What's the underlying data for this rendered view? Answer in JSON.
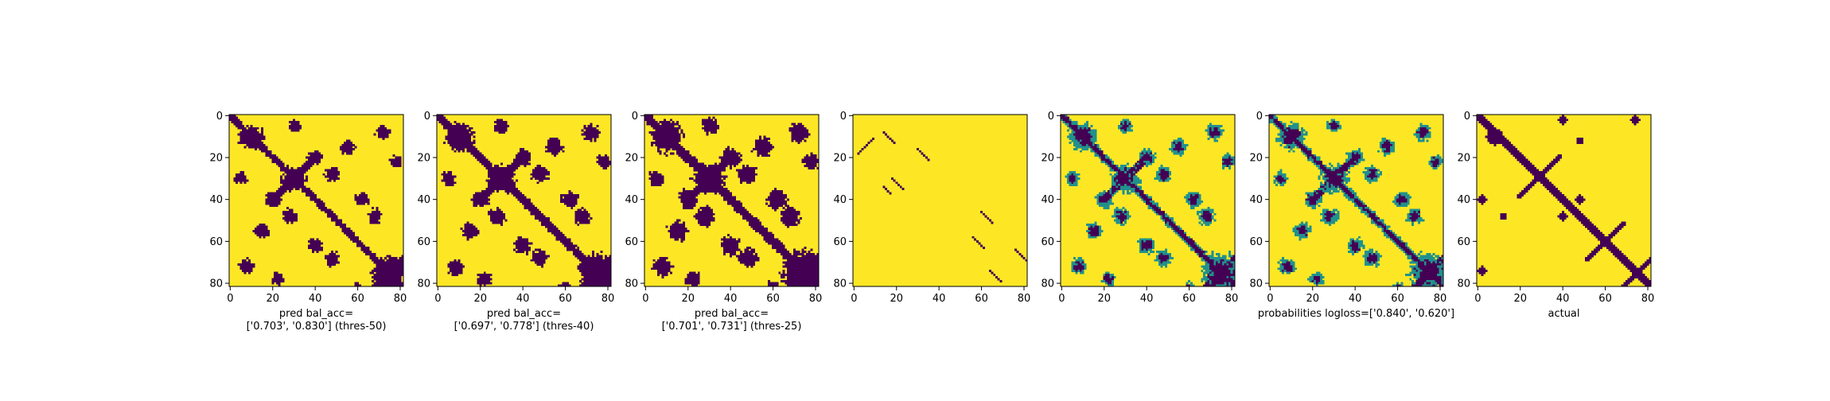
{
  "colors": {
    "low": "#440154",
    "mid": "#21918c",
    "high": "#fde725",
    "axis": "#000000",
    "background": "#ffffff"
  },
  "chart_data": [
    {
      "type": "heatmap",
      "title": "",
      "xlabel": "pred bal_acc=\n['0.703', '0.830'] (thres-50)",
      "ylabel": "",
      "xlim": [
        0,
        82
      ],
      "ylim": [
        82,
        0
      ],
      "xticks": [
        "0",
        "20",
        "40",
        "60",
        "80"
      ],
      "yticks": [
        "0",
        "20",
        "40",
        "60",
        "80"
      ],
      "colormap": "viridis",
      "values": "binary",
      "grid": false
    },
    {
      "type": "heatmap",
      "title": "",
      "xlabel": "pred bal_acc=\n['0.697', '0.778'] (thres-40)",
      "ylabel": "",
      "xlim": [
        0,
        82
      ],
      "ylim": [
        82,
        0
      ],
      "xticks": [
        "0",
        "20",
        "40",
        "60",
        "80"
      ],
      "yticks": [
        "0",
        "20",
        "40",
        "60",
        "80"
      ],
      "colormap": "viridis",
      "values": "binary",
      "grid": false
    },
    {
      "type": "heatmap",
      "title": "",
      "xlabel": "pred bal_acc=\n['0.701', '0.731'] (thres-25)",
      "ylabel": "",
      "xlim": [
        0,
        82
      ],
      "ylim": [
        82,
        0
      ],
      "xticks": [
        "0",
        "20",
        "40",
        "60",
        "80"
      ],
      "yticks": [
        "0",
        "20",
        "40",
        "60",
        "80"
      ],
      "colormap": "viridis",
      "values": "binary",
      "grid": false
    },
    {
      "type": "heatmap",
      "title": "",
      "xlabel": "",
      "ylabel": "",
      "xlim": [
        0,
        82
      ],
      "ylim": [
        82,
        0
      ],
      "xticks": [
        "0",
        "20",
        "40",
        "60",
        "80"
      ],
      "yticks": [
        "0",
        "20",
        "40",
        "60",
        "80"
      ],
      "colormap": "viridis",
      "values": "sparse-diagonals",
      "grid": false
    },
    {
      "type": "heatmap",
      "title": "",
      "xlabel": "",
      "ylabel": "",
      "xlim": [
        0,
        82
      ],
      "ylim": [
        82,
        0
      ],
      "xticks": [
        "0",
        "20",
        "40",
        "60",
        "80"
      ],
      "yticks": [
        "0",
        "20",
        "40",
        "60",
        "80"
      ],
      "colormap": "viridis",
      "values": "continuous",
      "grid": false
    },
    {
      "type": "heatmap",
      "title": "",
      "xlabel": "probabilities logloss=['0.840', '0.620']",
      "ylabel": "",
      "xlim": [
        0,
        82
      ],
      "ylim": [
        82,
        0
      ],
      "xticks": [
        "0",
        "20",
        "40",
        "60",
        "80"
      ],
      "yticks": [
        "0",
        "20",
        "40",
        "60",
        "80"
      ],
      "colormap": "viridis",
      "values": "continuous",
      "grid": false
    },
    {
      "type": "heatmap",
      "title": "",
      "xlabel": "actual",
      "ylabel": "",
      "xlim": [
        0,
        82
      ],
      "ylim": [
        82,
        0
      ],
      "xticks": [
        "0",
        "20",
        "40",
        "60",
        "80"
      ],
      "yticks": [
        "0",
        "20",
        "40",
        "60",
        "80"
      ],
      "colormap": "viridis",
      "values": "binary",
      "grid": false
    }
  ]
}
